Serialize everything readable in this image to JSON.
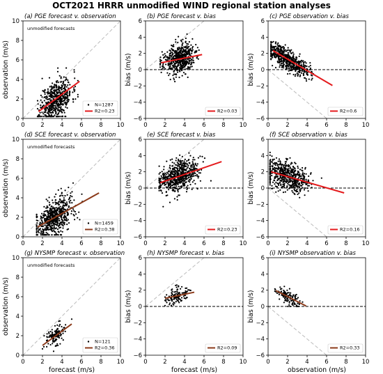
{
  "figure": {
    "title": "OCT2021 HRRR unmodified WIND regional station analyses"
  },
  "colors": {
    "point": "#000000",
    "fit_red": "#e41a1c",
    "fit_brown": "#8b3a1a",
    "one_to_one": "#bbbbbb",
    "zero_line": "#000000"
  },
  "chart_data": [
    {
      "id": "a",
      "type": "scatter",
      "title": "(a) PGE forecast v. observation",
      "xlabel": "",
      "ylabel": "observation (m/s)",
      "xlim": [
        0,
        10
      ],
      "ylim": [
        0,
        10
      ],
      "xticks": [
        "0",
        "2",
        "4",
        "6",
        "8",
        "10"
      ],
      "yticks": [
        "0",
        "2",
        "4",
        "6",
        "8",
        "10"
      ],
      "annotation": "unmodified forecasts",
      "reference_line": "one-to-one",
      "fit": {
        "x": [
          1.6,
          5.8
        ],
        "y": [
          0.7,
          3.8
        ],
        "color": "red",
        "r2": "R2=0.23"
      },
      "legend": {
        "n": "N=1287",
        "r2": "R2=0.23",
        "placement": "lower-right"
      },
      "cloud": {
        "n": 550,
        "x_center": 3.4,
        "x_sd": 0.8,
        "x_min": 1.5,
        "x_max": 6.0,
        "slope": 0.55,
        "intercept": 0.1,
        "noise": 1.0,
        "y_min": 0.2,
        "y_max": 6.9,
        "seed": 11
      }
    },
    {
      "id": "b",
      "type": "scatter",
      "title": "(b) PGE forecast v. bias",
      "xlabel": "",
      "ylabel": "bias (m/s)",
      "xlim": [
        0,
        10
      ],
      "ylim": [
        -6,
        6
      ],
      "xticks": [
        "0",
        "2",
        "4",
        "6",
        "8",
        "10"
      ],
      "yticks": [
        "−6",
        "−4",
        "−2",
        "0",
        "2",
        "4",
        "6"
      ],
      "reference_line": "y=x",
      "zero_line": true,
      "fit": {
        "x": [
          1.6,
          5.8
        ],
        "y": [
          0.85,
          1.85
        ],
        "color": "red",
        "r2": "R2=0.03"
      },
      "legend": {
        "r2": "R2=0.03",
        "placement": "lower-right"
      },
      "cloud": {
        "n": 550,
        "x_center": 3.4,
        "x_sd": 0.8,
        "x_min": 1.5,
        "x_max": 6.0,
        "slope": 0.25,
        "intercept": 0.45,
        "noise": 0.9,
        "y_min": -2.4,
        "y_max": 4.4,
        "seed": 23
      }
    },
    {
      "id": "c",
      "type": "scatter",
      "title": "(c) PGE observation v. bias",
      "xlabel": "",
      "ylabel": "bias (m/s)",
      "xlim": [
        0,
        10
      ],
      "ylim": [
        -6,
        6
      ],
      "xticks": [
        "0",
        "2",
        "4",
        "6",
        "8",
        "10"
      ],
      "yticks": [
        "−6",
        "−4",
        "−2",
        "0",
        "2",
        "4",
        "6"
      ],
      "reference_line": "y=-x",
      "zero_line": true,
      "fit": {
        "x": [
          0.5,
          6.6
        ],
        "y": [
          2.35,
          -1.95
        ],
        "color": "red",
        "r2": "R2=0.6"
      },
      "legend": {
        "r2": "R2=0.6",
        "placement": "lower-right"
      },
      "cloud": {
        "n": 550,
        "x_center": 2.0,
        "x_sd": 1.1,
        "x_min": 0.3,
        "x_max": 6.9,
        "slope": -0.7,
        "intercept": 2.7,
        "noise": 0.65,
        "y_min": -2.3,
        "y_max": 4.0,
        "seed": 37
      }
    },
    {
      "id": "d",
      "type": "scatter",
      "title": "(d) SCE forecast v. observation",
      "xlabel": "",
      "ylabel": "observation (m/s)",
      "xlim": [
        0,
        10
      ],
      "ylim": [
        0,
        10
      ],
      "xticks": [
        "0",
        "2",
        "4",
        "6",
        "8",
        "10"
      ],
      "yticks": [
        "0",
        "2",
        "4",
        "6",
        "8",
        "10"
      ],
      "annotation": "unmodified forecasts",
      "reference_line": "one-to-one",
      "fit": {
        "x": [
          1.5,
          7.8
        ],
        "y": [
          1.0,
          4.5
        ],
        "color": "brown",
        "r2": "R2=0.38"
      },
      "legend": {
        "n": "N=1459",
        "r2": "R2=0.38",
        "placement": "lower-right"
      },
      "cloud": {
        "n": 600,
        "x_center": 3.3,
        "x_sd": 1.0,
        "x_min": 1.4,
        "x_max": 7.9,
        "slope": 0.56,
        "intercept": 0.15,
        "noise": 0.95,
        "y_min": 0.2,
        "y_max": 7.6,
        "seed": 53
      }
    },
    {
      "id": "e",
      "type": "scatter",
      "title": "(e) SCE forecast v. bias",
      "xlabel": "",
      "ylabel": "bias (m/s)",
      "xlim": [
        0,
        10
      ],
      "ylim": [
        -6,
        6
      ],
      "xticks": [
        "0",
        "2",
        "4",
        "6",
        "8",
        "10"
      ],
      "yticks": [
        "−6",
        "−4",
        "−2",
        "0",
        "2",
        "4",
        "6"
      ],
      "reference_line": "y=x",
      "zero_line": true,
      "fit": {
        "x": [
          1.5,
          7.8
        ],
        "y": [
          0.65,
          3.25
        ],
        "color": "red",
        "r2": "R2=0.23"
      },
      "legend": {
        "r2": "R2=0.23",
        "placement": "lower-right"
      },
      "cloud": {
        "n": 600,
        "x_center": 3.3,
        "x_sd": 1.0,
        "x_min": 1.4,
        "x_max": 7.9,
        "slope": 0.42,
        "intercept": 0.0,
        "noise": 0.9,
        "y_min": -2.4,
        "y_max": 5.4,
        "seed": 67
      }
    },
    {
      "id": "f",
      "type": "scatter",
      "title": "(f) SCE observation v. bias",
      "xlabel": "",
      "ylabel": "bias (m/s)",
      "xlim": [
        0,
        10
      ],
      "ylim": [
        -6,
        6
      ],
      "xticks": [
        "0",
        "2",
        "4",
        "6",
        "8",
        "10"
      ],
      "yticks": [
        "−6",
        "−4",
        "−2",
        "0",
        "2",
        "4",
        "6"
      ],
      "reference_line": "y=-x",
      "zero_line": true,
      "fit": {
        "x": [
          0.3,
          7.8
        ],
        "y": [
          2.0,
          -0.6
        ],
        "color": "red",
        "r2": "R2=0.16"
      },
      "legend": {
        "r2": "R2=0.16",
        "placement": "lower-right"
      },
      "cloud": {
        "n": 600,
        "x_center": 1.9,
        "x_sd": 1.2,
        "x_min": 0.2,
        "x_max": 7.9,
        "slope": -0.35,
        "intercept": 2.2,
        "noise": 0.85,
        "y_min": -2.4,
        "y_max": 5.4,
        "seed": 79
      }
    },
    {
      "id": "g",
      "type": "scatter",
      "title": "(g) NYSMP forecast v. observation",
      "xlabel": "forecast (m/s)",
      "ylabel": "observation (m/s)",
      "xlim": [
        0,
        10
      ],
      "ylim": [
        0,
        10
      ],
      "xticks": [
        "0",
        "2",
        "4",
        "6",
        "8",
        "10"
      ],
      "yticks": [
        "0",
        "2",
        "4",
        "6",
        "8",
        "10"
      ],
      "annotation": "unmodified forecasts",
      "reference_line": "one-to-one",
      "fit": {
        "x": [
          2.0,
          5.0
        ],
        "y": [
          1.0,
          3.2
        ],
        "color": "brown",
        "r2": "R2=0.36"
      },
      "legend": {
        "n": "N=121",
        "r2": "R2=0.36",
        "placement": "lower-right"
      },
      "cloud": {
        "n": 121,
        "x_center": 3.2,
        "x_sd": 0.6,
        "x_min": 2.0,
        "x_max": 5.0,
        "slope": 0.72,
        "intercept": -0.35,
        "noise": 0.55,
        "y_min": 0.4,
        "y_max": 3.7,
        "seed": 97
      }
    },
    {
      "id": "h",
      "type": "scatter",
      "title": "(h) NYSMP forecast v. bias",
      "xlabel": "forecast (m/s)",
      "ylabel": "bias (m/s)",
      "xlim": [
        0,
        10
      ],
      "ylim": [
        -6,
        6
      ],
      "xticks": [
        "0",
        "2",
        "4",
        "6",
        "8",
        "10"
      ],
      "yticks": [
        "−6",
        "−4",
        "−2",
        "0",
        "2",
        "4",
        "6"
      ],
      "reference_line": "y=x",
      "zero_line": true,
      "fit": {
        "x": [
          2.0,
          5.0
        ],
        "y": [
          1.0,
          1.75
        ],
        "color": "brown",
        "r2": "R2=0.09"
      },
      "legend": {
        "r2": "R2=0.09",
        "placement": "lower-right"
      },
      "cloud": {
        "n": 121,
        "x_center": 3.2,
        "x_sd": 0.6,
        "x_min": 2.0,
        "x_max": 5.0,
        "slope": 0.25,
        "intercept": 0.5,
        "noise": 0.5,
        "y_min": 0.1,
        "y_max": 2.8,
        "seed": 103
      }
    },
    {
      "id": "i",
      "type": "scatter",
      "title": "(i) NYSMP observation v. bias",
      "xlabel": "observation (m/s)",
      "ylabel": "bias (m/s)",
      "xlim": [
        0,
        10
      ],
      "ylim": [
        -6,
        6
      ],
      "xticks": [
        "0",
        "2",
        "4",
        "6",
        "8",
        "10"
      ],
      "yticks": [
        "−6",
        "−4",
        "−2",
        "0",
        "2",
        "4",
        "6"
      ],
      "reference_line": "y=-x",
      "zero_line": true,
      "fit": {
        "x": [
          0.8,
          3.9
        ],
        "y": [
          1.95,
          0.05
        ],
        "color": "brown",
        "r2": "R2=0.33"
      },
      "legend": {
        "r2": "R2=0.33",
        "placement": "lower-right"
      },
      "cloud": {
        "n": 121,
        "x_center": 2.0,
        "x_sd": 0.65,
        "x_min": 0.7,
        "x_max": 3.9,
        "slope": -0.6,
        "intercept": 2.4,
        "noise": 0.45,
        "y_min": 0.0,
        "y_max": 2.8,
        "seed": 131
      }
    }
  ]
}
